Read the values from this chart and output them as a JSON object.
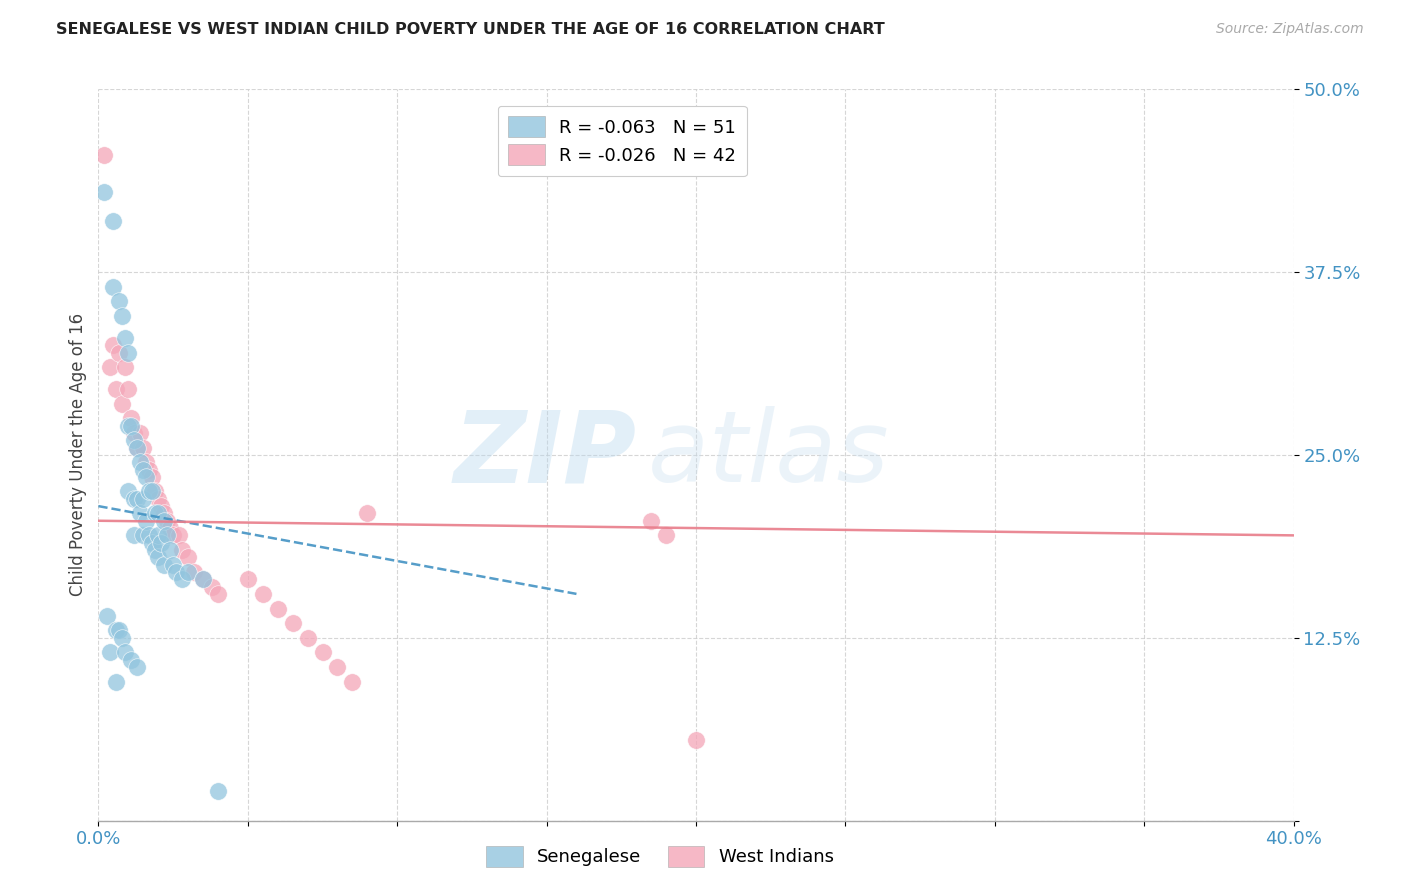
{
  "title": "SENEGALESE VS WEST INDIAN CHILD POVERTY UNDER THE AGE OF 16 CORRELATION CHART",
  "source": "Source: ZipAtlas.com",
  "ylabel": "Child Poverty Under the Age of 16",
  "xlim": [
    0.0,
    0.4
  ],
  "ylim": [
    0.0,
    0.5
  ],
  "xticks": [
    0.0,
    0.05,
    0.1,
    0.15,
    0.2,
    0.25,
    0.3,
    0.35,
    0.4
  ],
  "ytick_positions": [
    0.0,
    0.125,
    0.25,
    0.375,
    0.5
  ],
  "yticklabels": [
    "",
    "12.5%",
    "25.0%",
    "37.5%",
    "50.0%"
  ],
  "watermark_zip": "ZIP",
  "watermark_atlas": "atlas",
  "senegalese_R": "-0.063",
  "senegalese_N": "51",
  "westindian_R": "-0.026",
  "westindian_N": "42",
  "senegalese_color": "#92c5de",
  "westindian_color": "#f4a6b8",
  "trend_senegalese_color": "#4393c3",
  "trend_westindian_color": "#d6604d",
  "senegalese_x": [
    0.002,
    0.003,
    0.004,
    0.005,
    0.005,
    0.006,
    0.006,
    0.007,
    0.007,
    0.008,
    0.008,
    0.009,
    0.009,
    0.01,
    0.01,
    0.01,
    0.011,
    0.011,
    0.012,
    0.012,
    0.012,
    0.013,
    0.013,
    0.013,
    0.014,
    0.014,
    0.015,
    0.015,
    0.015,
    0.016,
    0.016,
    0.017,
    0.017,
    0.018,
    0.018,
    0.019,
    0.019,
    0.02,
    0.02,
    0.02,
    0.021,
    0.022,
    0.022,
    0.023,
    0.024,
    0.025,
    0.026,
    0.028,
    0.03,
    0.035,
    0.04
  ],
  "senegalese_y": [
    0.43,
    0.14,
    0.115,
    0.41,
    0.365,
    0.13,
    0.095,
    0.355,
    0.13,
    0.345,
    0.125,
    0.33,
    0.115,
    0.32,
    0.27,
    0.225,
    0.27,
    0.11,
    0.26,
    0.22,
    0.195,
    0.255,
    0.22,
    0.105,
    0.245,
    0.21,
    0.24,
    0.22,
    0.195,
    0.235,
    0.205,
    0.225,
    0.195,
    0.225,
    0.19,
    0.21,
    0.185,
    0.21,
    0.195,
    0.18,
    0.19,
    0.205,
    0.175,
    0.195,
    0.185,
    0.175,
    0.17,
    0.165,
    0.17,
    0.165,
    0.02
  ],
  "westindian_x": [
    0.002,
    0.004,
    0.005,
    0.006,
    0.007,
    0.008,
    0.009,
    0.01,
    0.011,
    0.012,
    0.013,
    0.014,
    0.015,
    0.016,
    0.017,
    0.018,
    0.019,
    0.02,
    0.021,
    0.022,
    0.023,
    0.024,
    0.025,
    0.027,
    0.028,
    0.03,
    0.032,
    0.035,
    0.038,
    0.04,
    0.05,
    0.055,
    0.06,
    0.065,
    0.07,
    0.075,
    0.08,
    0.085,
    0.09,
    0.185,
    0.19,
    0.2
  ],
  "westindian_y": [
    0.455,
    0.31,
    0.325,
    0.295,
    0.32,
    0.285,
    0.31,
    0.295,
    0.275,
    0.265,
    0.255,
    0.265,
    0.255,
    0.245,
    0.24,
    0.235,
    0.225,
    0.22,
    0.215,
    0.21,
    0.205,
    0.2,
    0.195,
    0.195,
    0.185,
    0.18,
    0.17,
    0.165,
    0.16,
    0.155,
    0.165,
    0.155,
    0.145,
    0.135,
    0.125,
    0.115,
    0.105,
    0.095,
    0.21,
    0.205,
    0.195,
    0.055
  ],
  "sen_trend_x": [
    0.0,
    0.16
  ],
  "sen_trend_y": [
    0.215,
    0.155
  ],
  "wi_trend_x": [
    0.0,
    0.4
  ],
  "wi_trend_y": [
    0.205,
    0.195
  ]
}
